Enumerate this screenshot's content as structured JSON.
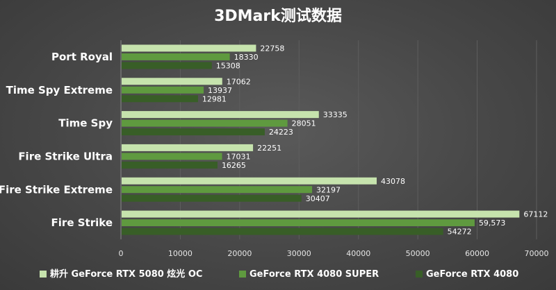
{
  "chart_data": {
    "type": "bar",
    "orientation": "horizontal",
    "title": "3DMark测试数据",
    "categories": [
      "Port Royal",
      "Time Spy Extreme",
      "Time Spy",
      "Fire Strike Ultra",
      "Fire Strike Extreme",
      "Fire Strike"
    ],
    "series": [
      {
        "name": "耕升 GeForce RTX 5080 炫光 OC",
        "color": "#c6e3ad",
        "values": [
          22758,
          17062,
          33335,
          22251,
          43078,
          67112
        ],
        "labels": [
          "22758",
          "17062",
          "33335",
          "22251",
          "43078",
          "67112"
        ]
      },
      {
        "name": "GeForce RTX 4080 SUPER",
        "color": "#5f9a3f",
        "values": [
          18330,
          13937,
          28051,
          17031,
          32197,
          59573
        ],
        "labels": [
          "18330",
          "13937",
          "28051",
          "17031",
          "32197",
          "59,573"
        ]
      },
      {
        "name": "GeForce RTX 4080",
        "color": "#385e27",
        "values": [
          15308,
          12981,
          24223,
          16265,
          30407,
          54272
        ],
        "labels": [
          "15308",
          "12981",
          "24223",
          "16265",
          "30407",
          "54272"
        ]
      }
    ],
    "xlim": [
      0,
      70000
    ],
    "xticks": [
      0,
      10000,
      20000,
      30000,
      40000,
      50000,
      60000,
      70000
    ],
    "grid": true,
    "legend": "bottom"
  }
}
